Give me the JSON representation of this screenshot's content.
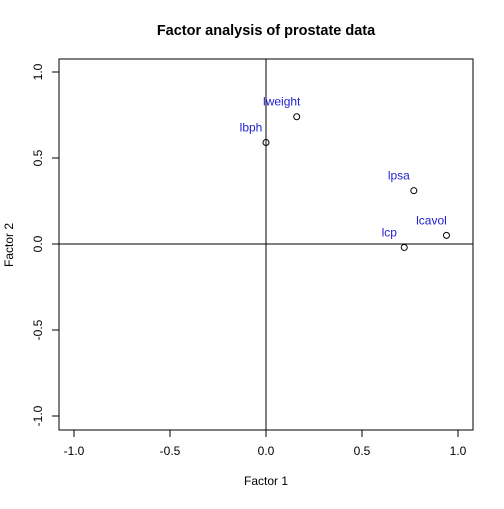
{
  "chart_data": {
    "type": "scatter",
    "title": "Factor analysis of prostate data",
    "xlabel": "Factor 1",
    "ylabel": "Factor 2",
    "xlim": [
      -1.0,
      1.0
    ],
    "ylim": [
      -1.0,
      1.0
    ],
    "xticks": [
      -1.0,
      -0.5,
      0.0,
      0.5,
      1.0
    ],
    "xtick_labels": [
      "-1.0",
      "-0.5",
      "0.0",
      "0.5",
      "1.0"
    ],
    "yticks": [
      -1.0,
      -0.5,
      0.0,
      0.5,
      1.0
    ],
    "ytick_labels": [
      "-1.0",
      "-0.5",
      "0.0",
      "0.5",
      "1.0"
    ],
    "grid": false,
    "reference_lines": {
      "x": 0,
      "y": 0
    },
    "points": [
      {
        "label": "lweight",
        "x": 0.16,
        "y": 0.74
      },
      {
        "label": "lbph",
        "x": 0.0,
        "y": 0.59
      },
      {
        "label": "lpsa",
        "x": 0.77,
        "y": 0.31
      },
      {
        "label": "lcavol",
        "x": 0.94,
        "y": 0.05
      },
      {
        "label": "lcp",
        "x": 0.72,
        "y": -0.02
      }
    ],
    "colors": {
      "point_label": "#1f1fd0",
      "marker": "#000000",
      "axis": "#000000"
    }
  }
}
